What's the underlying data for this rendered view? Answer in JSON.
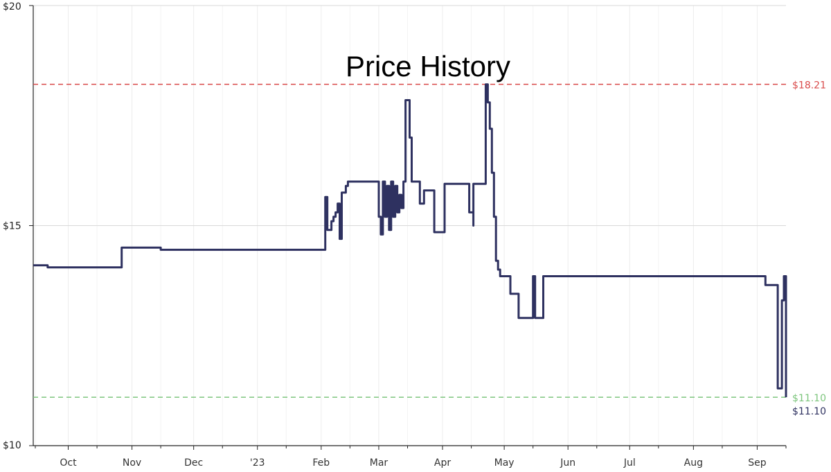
{
  "chart_data": {
    "type": "line",
    "title": "Price History",
    "xlabel": "",
    "ylabel": "",
    "x_tick_labels": [
      "Oct",
      "Nov",
      "Dec",
      "'23",
      "Feb",
      "Mar",
      "Apr",
      "May",
      "Jun",
      "Jul",
      "Aug",
      "Sep"
    ],
    "y_tick_labels": [
      "$20",
      "$15",
      "$10"
    ],
    "y_ticks": [
      20,
      15,
      10
    ],
    "ylim": [
      10,
      20
    ],
    "xlim": [
      "2022-09-14",
      "2023-09-15"
    ],
    "grid": true,
    "legend": "none",
    "colors": {
      "series": "#2e3160",
      "high": "#d94b4b",
      "low": "#7cc57c"
    },
    "reference_lines": [
      {
        "name": "high",
        "value": 18.21,
        "label": "$18.21"
      },
      {
        "name": "low",
        "value": 11.1,
        "label": "$11.10"
      }
    ],
    "last_price_label": "$11.10",
    "series": [
      {
        "step": true,
        "x": [
          "2022-09-14",
          "2022-09-21",
          "2022-09-21",
          "2022-10-27",
          "2022-10-27",
          "2022-11-15",
          "2022-11-15",
          "2023-02-03",
          "2023-02-03",
          "2023-02-04",
          "2023-02-06",
          "2023-02-07",
          "2023-02-08",
          "2023-02-09",
          "2023-02-10",
          "2023-02-11",
          "2023-02-13",
          "2023-02-14",
          "2023-02-15",
          "2023-02-15",
          "2023-02-16",
          "2023-02-17",
          "2023-02-18",
          "2023-02-22",
          "2023-02-28",
          "2023-03-01",
          "2023-03-02",
          "2023-03-03",
          "2023-03-04",
          "2023-03-05",
          "2023-03-06",
          "2023-03-07",
          "2023-03-08",
          "2023-03-09",
          "2023-03-10",
          "2023-03-11",
          "2023-03-12",
          "2023-03-13",
          "2023-03-14",
          "2023-03-15",
          "2023-03-16",
          "2023-03-17",
          "2023-03-20",
          "2023-03-21",
          "2023-03-22",
          "2023-03-23",
          "2023-03-27",
          "2023-03-28",
          "2023-03-30",
          "2023-04-02",
          "2023-04-03",
          "2023-04-05",
          "2023-04-06",
          "2023-04-07",
          "2023-04-14",
          "2023-04-15",
          "2023-04-16",
          "2023-04-16",
          "2023-04-21",
          "2023-04-22",
          "2023-04-23",
          "2023-04-24",
          "2023-04-25",
          "2023-04-26",
          "2023-04-27",
          "2023-04-28",
          "2023-04-29",
          "2023-04-30",
          "2023-05-01",
          "2023-05-02",
          "2023-05-03",
          "2023-05-04",
          "2023-05-08",
          "2023-05-08",
          "2023-05-14",
          "2023-05-15",
          "2023-05-16",
          "2023-05-16",
          "2023-05-17",
          "2023-05-20",
          "2023-05-20",
          "2023-05-29",
          "2023-08-15",
          "2023-09-05",
          "2023-09-06",
          "2023-09-11",
          "2023-09-12",
          "2023-09-13",
          "2023-09-14",
          "2023-09-15"
        ],
        "y": [
          14.1,
          14.1,
          14.05,
          14.05,
          14.5,
          14.5,
          14.45,
          14.45,
          15.65,
          14.9,
          15.1,
          15.2,
          15.3,
          15.5,
          14.7,
          15.75,
          15.9,
          16.0,
          16.0,
          16.0,
          16.0,
          16.0,
          16.0,
          16.0,
          16.0,
          15.2,
          14.8,
          16.0,
          15.2,
          15.9,
          14.9,
          16.0,
          15.2,
          15.9,
          15.3,
          15.7,
          15.4,
          16.0,
          17.85,
          17.85,
          17.0,
          16.0,
          16.0,
          15.5,
          15.5,
          15.8,
          15.8,
          14.85,
          14.85,
          15.95,
          15.95,
          15.95,
          15.95,
          15.95,
          15.3,
          15.3,
          15.0,
          15.95,
          15.95,
          18.21,
          17.8,
          17.2,
          16.2,
          15.2,
          14.2,
          14.0,
          13.85,
          13.85,
          13.85,
          13.85,
          13.85,
          13.45,
          13.45,
          12.9,
          12.9,
          13.85,
          13.85,
          12.9,
          12.9,
          13.85,
          13.85,
          13.85,
          13.85,
          13.65,
          13.65,
          11.3,
          11.3,
          13.3,
          13.85,
          11.1
        ]
      }
    ]
  }
}
